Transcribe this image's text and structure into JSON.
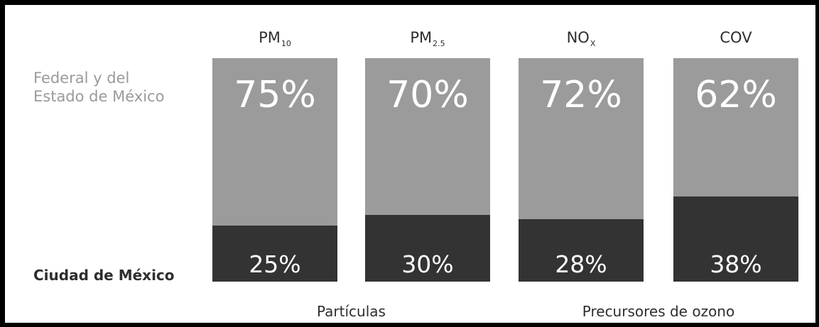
{
  "chart_data": {
    "type": "bar",
    "stacked": true,
    "categories": [
      {
        "base": "PM",
        "sub": "10"
      },
      {
        "base": "PM",
        "sub": "2.5"
      },
      {
        "base": "NO",
        "sub": "X"
      },
      {
        "base": "COV",
        "sub": ""
      }
    ],
    "series": [
      {
        "name": "Federal y del Estado de México",
        "values": [
          75,
          70,
          72,
          62
        ],
        "labels": [
          "75%",
          "70%",
          "72%",
          "62%"
        ],
        "color": "#9b9b9b"
      },
      {
        "name": "Ciudad de México",
        "values": [
          25,
          30,
          28,
          38
        ],
        "labels": [
          "25%",
          "30%",
          "28%",
          "38%"
        ],
        "color": "#333333"
      }
    ],
    "ylim": [
      0,
      100
    ],
    "groups": [
      {
        "label": "Partículas",
        "categories": [
          0,
          1
        ]
      },
      {
        "label": "Precursores de ozono",
        "categories": [
          2,
          3
        ]
      }
    ],
    "grid": false
  },
  "legend": {
    "top_line1": "Federal y del",
    "top_line2": "Estado de México",
    "bottom": "Ciudad de México"
  }
}
